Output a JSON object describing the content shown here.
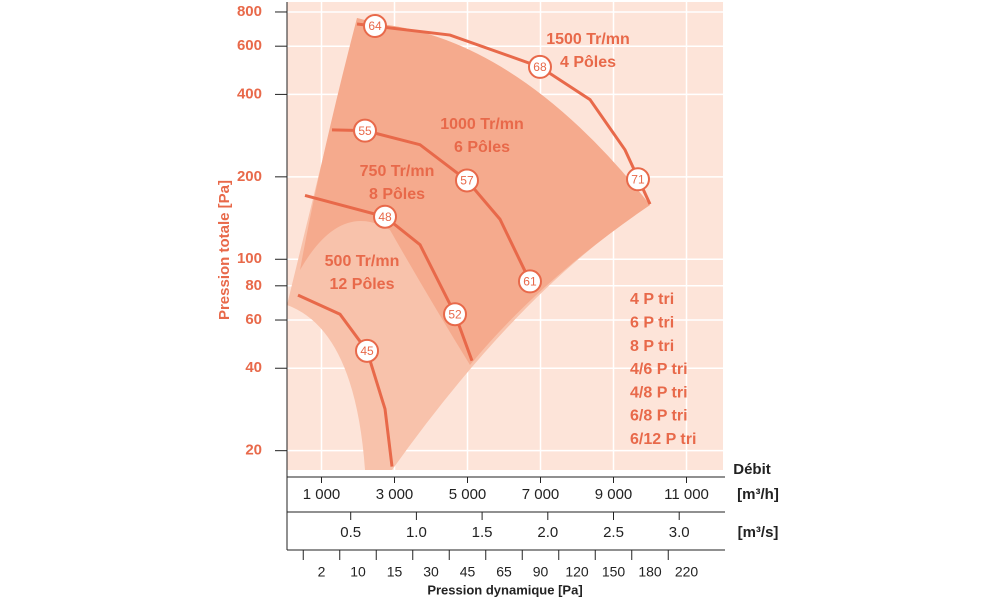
{
  "chart_data": {
    "type": "line",
    "y_label": "Pression totale [Pa]",
    "x_title": "Débit",
    "x_unit": "[m³/h]",
    "x2_unit": "[m³/s]",
    "x3_title": "Pression dynamique [Pa]",
    "color": "#e8694a",
    "yscale": "log",
    "grid": true,
    "xlim": [
      0,
      12000
    ],
    "xticks": [
      {
        "value": 1000,
        "label": "1 000"
      },
      {
        "value": 3000,
        "label": "3 000"
      },
      {
        "value": 5000,
        "label": "5 000"
      },
      {
        "value": 7000,
        "label": "7 000"
      },
      {
        "value": 9000,
        "label": "9 000"
      },
      {
        "value": 11000,
        "label": "11 000"
      }
    ],
    "x2lim": [
      0,
      3.3333
    ],
    "x2ticks": [
      0.5,
      {
        "value": 1,
        "label": "1.0"
      },
      1.5,
      {
        "value": 2,
        "label": "2.0"
      },
      2.5,
      {
        "value": 3,
        "label": "3.0"
      }
    ],
    "x3_categories": [
      2,
      10,
      15,
      30,
      45,
      65,
      90,
      120,
      150,
      180,
      220
    ],
    "ylim": [
      17,
      870
    ],
    "yticks": [
      20,
      40,
      60,
      80,
      100,
      200,
      400,
      600,
      800
    ],
    "series": [
      {
        "name": "1500 Tr/mn",
        "poles": "4 Pôles",
        "x": [
          1973,
          4521,
          6986,
          8356,
          9315,
          10000
        ],
        "values": [
          723,
          659,
          504,
          383,
          251,
          159
        ],
        "marker_x": [
          2466,
          6986,
          9671
        ],
        "marker_y": [
          711,
          504,
          196
        ],
        "marker_values": [
          64,
          68,
          71
        ]
      },
      {
        "name": "1000 Tr/mn",
        "poles": "6 Pôles",
        "x": [
          1288,
          2192,
          3699,
          4986,
          5890,
          6712,
          6767
        ],
        "values": [
          297,
          295,
          262,
          194,
          140,
          83,
          78
        ],
        "marker_x": [
          2192,
          4986,
          6712
        ],
        "marker_y": [
          295,
          194,
          83
        ],
        "marker_values": [
          55,
          57,
          61
        ]
      },
      {
        "name": "750 Tr/mn",
        "poles": "8 Pôles",
        "x": [
          548,
          2740,
          3699,
          4658,
          5123
        ],
        "values": [
          171,
          143,
          113,
          63,
          42.6
        ],
        "marker_x": [
          2740,
          4658
        ],
        "marker_y": [
          143,
          63
        ],
        "marker_values": [
          48,
          52
        ]
      },
      {
        "name": "500 Tr/mn",
        "poles": "12 Pôles",
        "x": [
          356,
          1507,
          2247,
          2740,
          2932
        ],
        "values": [
          74,
          63,
          46.3,
          28.4,
          17.5
        ],
        "marker_x": [
          2247
        ],
        "marker_y": [
          46.3
        ],
        "marker_values": [
          45
        ]
      }
    ],
    "annotations": [
      "4 P tri",
      "6 P tri",
      "8 P tri",
      "4/6 P tri",
      "4/8 P tri",
      "6/8 P tri",
      "6/12 P tri"
    ]
  }
}
